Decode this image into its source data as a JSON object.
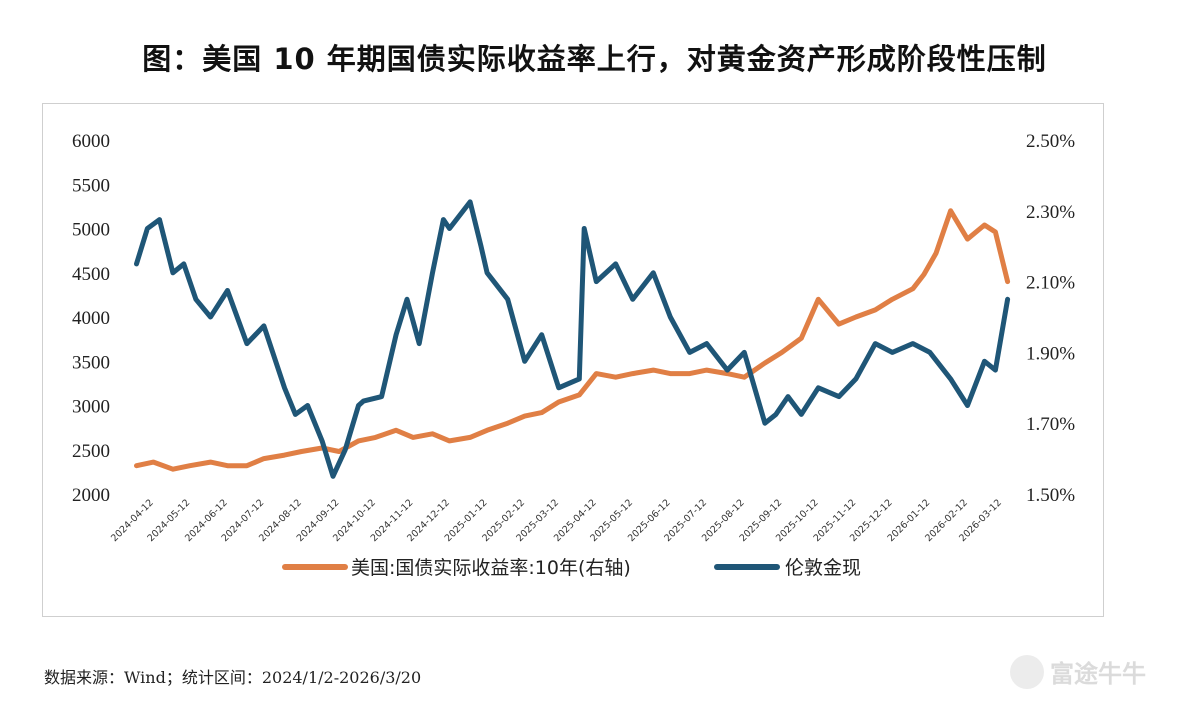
{
  "page": {
    "title": "图：美国 10 年期国债实际收益率上行，对黄金资产形成阶段性压制",
    "source_note": "数据来源：Wind；统计区间：2024/1/2-2026/3/20",
    "watermark": "富途牛牛"
  },
  "chart_data": {
    "type": "line",
    "title": "图：美国 10 年期国债实际收益率上行，对黄金资产形成阶段性压制",
    "left_axis": {
      "min": 2000,
      "max": 6000,
      "ticks": [
        6000,
        5500,
        5000,
        4500,
        4000,
        3500,
        3000,
        2500,
        2000
      ]
    },
    "right_axis": {
      "min": 1.5,
      "max": 2.5,
      "ticks": [
        "2.50%",
        "2.30%",
        "2.10%",
        "1.90%",
        "1.70%",
        "1.50%"
      ],
      "tick_values": [
        2.5,
        2.3,
        2.1,
        1.9,
        1.7,
        1.5
      ]
    },
    "x_tick_labels": [
      "2024-04-12",
      "2024-05-12",
      "2024-06-12",
      "2024-07-12",
      "2024-08-12",
      "2024-09-12",
      "2024-10-12",
      "2024-11-12",
      "2024-12-12",
      "2025-01-12",
      "2025-02-12",
      "2025-03-12",
      "2025-04-12",
      "2025-05-12",
      "2025-06-12",
      "2025-07-12",
      "2025-08-12",
      "2025-09-12",
      "2025-10-12",
      "2025-11-12",
      "2025-12-12",
      "2026-01-12",
      "2026-02-12",
      "2026-03-12"
    ],
    "grid": false,
    "legend_position": "bottom",
    "series": [
      {
        "name": "美国:国债实际收益率:10年(右轴)",
        "axis": "right",
        "color": "#E07F45",
        "x": [
          "2024-04-01",
          "2024-04-15",
          "2024-05-01",
          "2024-05-15",
          "2024-06-01",
          "2024-06-15",
          "2024-07-01",
          "2024-07-15",
          "2024-08-01",
          "2024-08-15",
          "2024-09-01",
          "2024-09-15",
          "2024-10-01",
          "2024-10-15",
          "2024-11-01",
          "2024-11-15",
          "2024-12-01",
          "2024-12-15",
          "2025-01-01",
          "2025-01-15",
          "2025-02-01",
          "2025-02-15",
          "2025-03-01",
          "2025-03-15",
          "2025-04-01",
          "2025-04-15",
          "2025-05-01",
          "2025-05-15",
          "2025-06-01",
          "2025-06-15",
          "2025-07-01",
          "2025-07-15",
          "2025-08-01",
          "2025-08-15",
          "2025-09-01",
          "2025-09-15",
          "2025-10-01",
          "2025-10-15",
          "2025-11-01",
          "2025-11-15",
          "2025-12-01",
          "2025-12-15",
          "2026-01-01",
          "2026-01-10",
          "2026-01-20",
          "2026-02-01",
          "2026-02-15",
          "2026-03-01",
          "2026-03-10",
          "2026-03-20"
        ],
        "values": [
          1.58,
          1.59,
          1.57,
          1.58,
          1.59,
          1.58,
          1.58,
          1.6,
          1.61,
          1.62,
          1.63,
          1.62,
          1.65,
          1.66,
          1.68,
          1.66,
          1.67,
          1.65,
          1.66,
          1.68,
          1.7,
          1.72,
          1.73,
          1.76,
          1.78,
          1.84,
          1.83,
          1.84,
          1.85,
          1.84,
          1.84,
          1.85,
          1.84,
          1.83,
          1.87,
          1.9,
          1.94,
          2.05,
          1.98,
          2.0,
          2.02,
          2.05,
          2.08,
          2.12,
          2.18,
          2.3,
          2.22,
          2.26,
          2.24,
          2.1
        ]
      },
      {
        "name": "伦敦金现",
        "axis": "left",
        "color": "#1F5677",
        "x": [
          "2024-04-01",
          "2024-04-10",
          "2024-04-20",
          "2024-05-01",
          "2024-05-10",
          "2024-05-20",
          "2024-06-01",
          "2024-06-15",
          "2024-07-01",
          "2024-07-15",
          "2024-08-01",
          "2024-08-10",
          "2024-08-20",
          "2024-09-01",
          "2024-09-10",
          "2024-09-20",
          "2024-10-01",
          "2024-10-05",
          "2024-10-20",
          "2024-11-01",
          "2024-11-10",
          "2024-11-20",
          "2024-12-01",
          "2024-12-10",
          "2024-12-15",
          "2025-01-01",
          "2025-01-10",
          "2025-01-15",
          "2025-02-01",
          "2025-02-15",
          "2025-03-01",
          "2025-03-15",
          "2025-04-01",
          "2025-04-05",
          "2025-04-15",
          "2025-05-01",
          "2025-05-15",
          "2025-06-01",
          "2025-06-15",
          "2025-07-01",
          "2025-07-15",
          "2025-08-01",
          "2025-08-15",
          "2025-09-01",
          "2025-09-10",
          "2025-09-20",
          "2025-10-01",
          "2025-10-15",
          "2025-11-01",
          "2025-11-15",
          "2025-12-01",
          "2025-12-15",
          "2026-01-01",
          "2026-01-15",
          "2026-02-01",
          "2026-02-15",
          "2026-03-01",
          "2026-03-10",
          "2026-03-20"
        ],
        "values": [
          4600,
          5000,
          5100,
          4500,
          4600,
          4200,
          4000,
          4300,
          3700,
          3900,
          3200,
          2900,
          3000,
          2600,
          2200,
          2500,
          3000,
          3050,
          3100,
          3800,
          4200,
          3700,
          4500,
          5100,
          5000,
          5300,
          4800,
          4500,
          4200,
          3500,
          3800,
          3200,
          3300,
          5000,
          4400,
          4600,
          4200,
          4500,
          4000,
          3600,
          3700,
          3400,
          3600,
          2800,
          2900,
          3100,
          2900,
          3200,
          3100,
          3300,
          3700,
          3600,
          3700,
          3600,
          3300,
          3000,
          3500,
          3400,
          4200
        ]
      }
    ]
  }
}
